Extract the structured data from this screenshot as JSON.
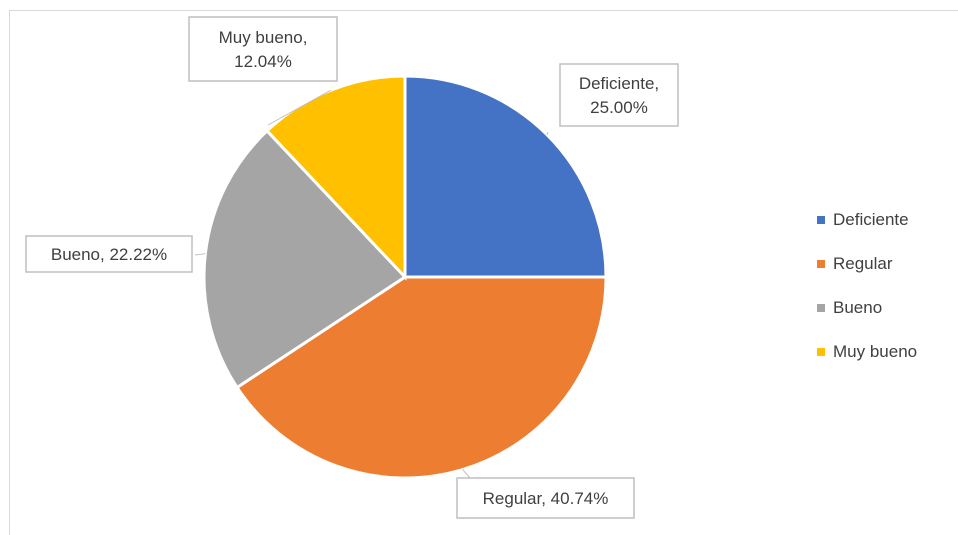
{
  "chart_data": {
    "type": "pie",
    "categories": [
      "Deficiente",
      "Regular",
      "Bueno",
      "Muy bueno"
    ],
    "values": [
      25.0,
      40.74,
      22.22,
      12.04
    ],
    "colors": [
      "#4472c4",
      "#ed7d31",
      "#a5a5a5",
      "#ffc000"
    ],
    "data_labels": [
      "Deficiente,\n25.00%",
      "Regular, 40.74%",
      "Bueno, 22.22%",
      "Muy bueno,\n12.04%"
    ],
    "legend_position": "right",
    "title": ""
  }
}
